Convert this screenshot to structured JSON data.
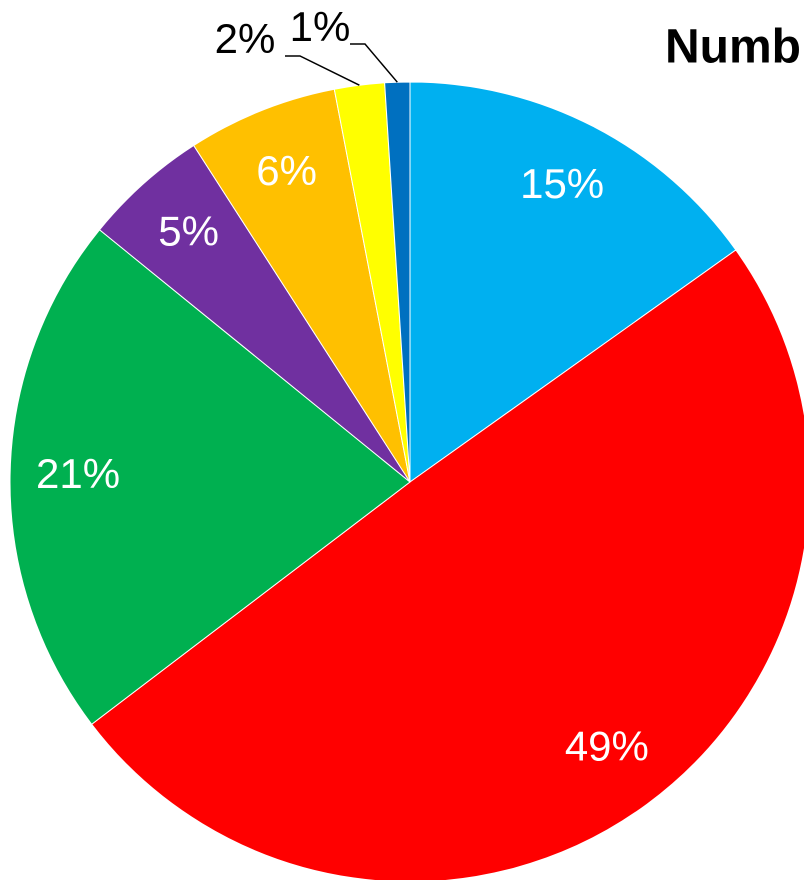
{
  "chart_data": {
    "type": "pie",
    "title": "Numb",
    "values": [
      15,
      49,
      21,
      5,
      6,
      2,
      1
    ],
    "value_labels": [
      "15%",
      "49%",
      "21%",
      "5%",
      "6%",
      "2%",
      "1%"
    ],
    "colors": [
      "#00b0f0",
      "#ff0000",
      "#00b050",
      "#7030a0",
      "#ffc000",
      "#ffff00",
      "#0070c0"
    ]
  }
}
